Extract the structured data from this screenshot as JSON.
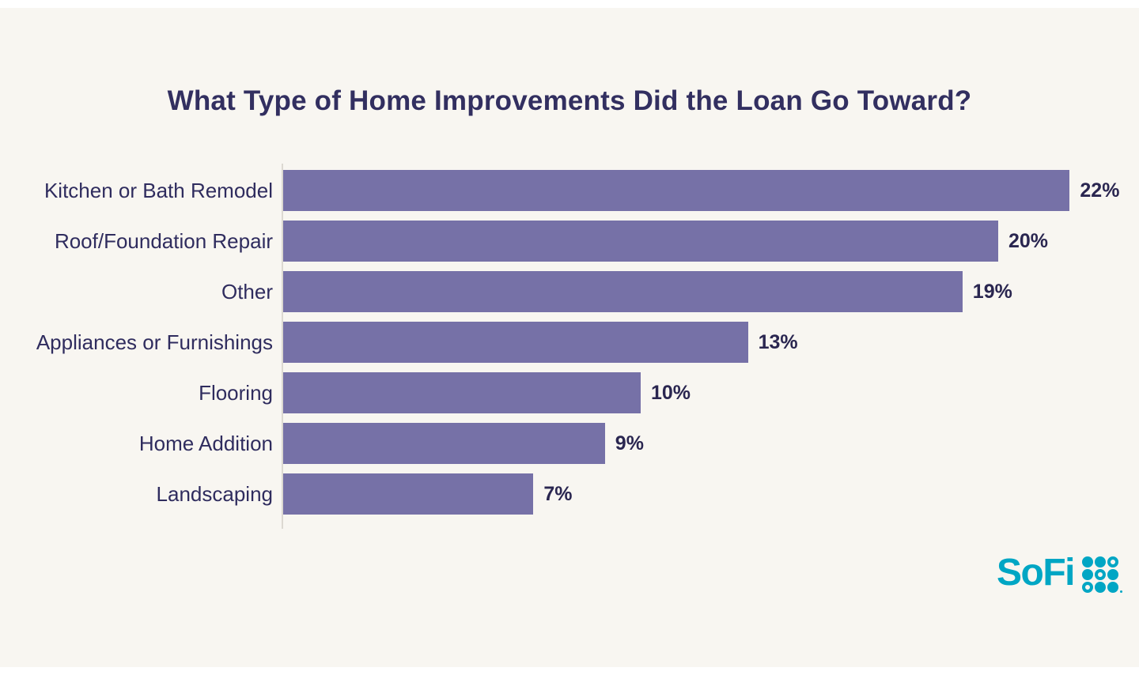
{
  "page": {
    "background": "#ffffff",
    "panel_background": "#f8f6f1"
  },
  "chart_data": {
    "type": "bar",
    "orientation": "horizontal",
    "title": "What Type of Home Improvements Did the Loan Go Toward?",
    "categories": [
      "Kitchen or Bath Remodel",
      "Roof/Foundation Repair",
      "Other",
      "Appliances or Furnishings",
      "Flooring",
      "Home Addition",
      "Landscaping"
    ],
    "values": [
      22,
      20,
      19,
      13,
      10,
      9,
      7
    ],
    "value_labels": [
      "22%",
      "20%",
      "19%",
      "13%",
      "10%",
      "9%",
      "7%"
    ],
    "value_suffix": "%",
    "xlim": [
      0,
      22
    ],
    "grid": false,
    "legend": false,
    "bar_color": "#7671a7",
    "title_color": "#322f60",
    "category_label_color": "#2f2c5e",
    "value_label_color": "#2a2650",
    "axis_line_color": "#dcd9d2"
  },
  "branding": {
    "logo_text": "SoFi",
    "logo_color": "#00a6c4",
    "logo_dots_icon": [
      "filled",
      "filled",
      "ring",
      "filled",
      "ring",
      "filled",
      "ring",
      "filled",
      "filled"
    ]
  }
}
